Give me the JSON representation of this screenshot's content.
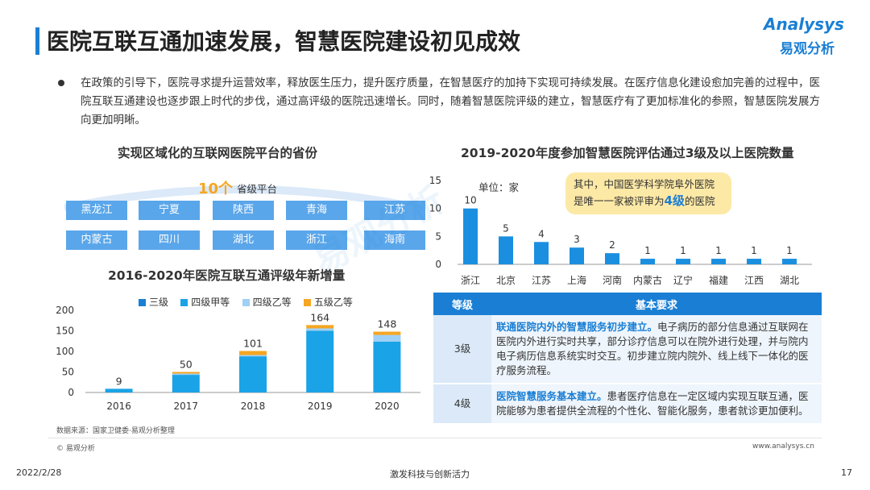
{
  "header": {
    "title": "医院互联互通加速发展，智慧医院建设初见成效",
    "logo_en": "Analysys",
    "logo_cn": "易观分析"
  },
  "intro": "在政策的引导下，医院寻求提升运营效率，释放医生压力，提升医疗质量，在智慧医疗的加持下实现可持续发展。在医疗信息化建设愈加完善的过程中，医院互联互通建设也逐步跟上时代的步伐，通过高评级的医院迅速增长。同时，随着智慧医院评级的建立，智慧医疗有了更加标准化的参照，智慧医院发展方向更加明晰。",
  "platforms": {
    "title": "实现区域化的互联网医院平台的省份",
    "count": "10个",
    "count_label": "省级平台",
    "provinces": [
      "黑龙江",
      "宁夏",
      "陕西",
      "青海",
      "江苏",
      "内蒙古",
      "四川",
      "湖北",
      "浙江",
      "海南"
    ]
  },
  "chart_data": [
    {
      "type": "bar",
      "title": "2016-2020年医院互联互通评级年新增量",
      "categories": [
        "2016",
        "2017",
        "2018",
        "2019",
        "2020"
      ],
      "series": [
        {
          "name": "三级",
          "values": [
            0,
            0,
            0,
            0,
            0
          ],
          "color": "#1a7fd4"
        },
        {
          "name": "四级甲等",
          "values": [
            9,
            43,
            88,
            150,
            124
          ],
          "color": "#1aa3e6"
        },
        {
          "name": "四级乙等",
          "values": [
            0,
            3,
            3,
            6,
            16
          ],
          "color": "#9fd0f5"
        },
        {
          "name": "五级乙等",
          "values": [
            0,
            4,
            10,
            8,
            8
          ],
          "color": "#f5a623"
        }
      ],
      "totals": [
        9,
        50,
        101,
        164,
        148
      ],
      "ylim": [
        0,
        200
      ],
      "yticks": [
        0,
        50,
        100,
        150,
        200
      ],
      "legend": "top"
    },
    {
      "type": "bar",
      "title": "2019-2020年度参加智慧医院评估通过3级及以上医院数量",
      "unit": "单位：家",
      "categories": [
        "浙江",
        "北京",
        "江苏",
        "上海",
        "河南",
        "内蒙古",
        "辽宁",
        "福建",
        "江西",
        "湖北"
      ],
      "values": [
        10,
        5,
        4,
        3,
        2,
        1,
        1,
        1,
        1,
        1
      ],
      "ylim": [
        0,
        15
      ],
      "yticks": [
        0,
        5,
        10,
        15
      ],
      "color": "#1a8fe0"
    }
  ],
  "callout": {
    "line1": "其中，中国医学科学院阜外医院",
    "line2_pre": "是唯一一家被评审为",
    "line2_hl": "4级",
    "line2_post": "的医院"
  },
  "table": {
    "headers": [
      "等级",
      "基本要求"
    ],
    "rows": [
      {
        "level": "3级",
        "highlight": "联通医院内外的智慧服务初步建立。",
        "text": "电子病历的部分信息通过互联网在医院内外进行实时共享，部分诊疗信息可以在院外进行处理，并与院内电子病历信息系统实时交互。初步建立院内院外、线上线下一体化的医疗服务流程。"
      },
      {
        "level": "4级",
        "highlight": "医院智慧服务基本建立。",
        "text": "患者医疗信息在一定区域内实现互联互通，医院能够为患者提供全流程的个性化、智能化服务，患者就诊更加便利。"
      }
    ]
  },
  "footer": {
    "source": "数据来源：国家卫健委·易观分析整理",
    "copyright": "© 易观分析",
    "website": "www.analysys.cn",
    "date": "2022/2/28",
    "slogan": "激发科技与创新活力",
    "page": "17"
  }
}
